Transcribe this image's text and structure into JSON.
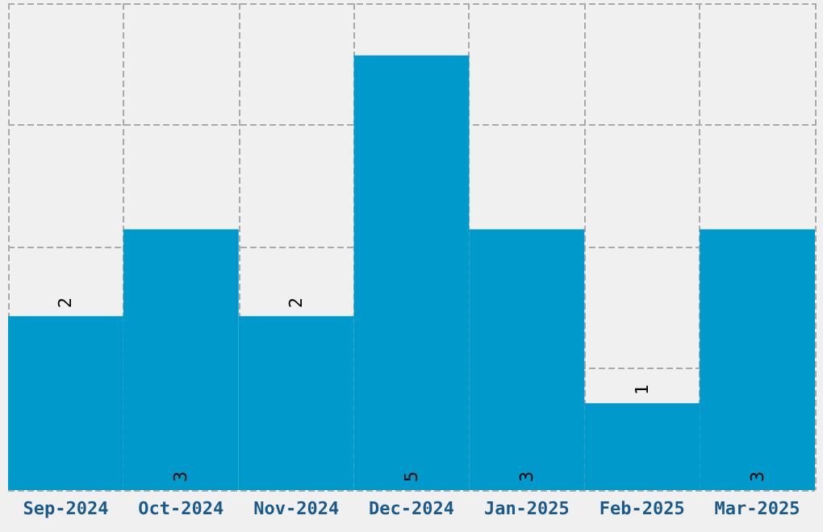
{
  "chart_data": {
    "type": "bar",
    "categories": [
      "Sep-2024",
      "Oct-2024",
      "Nov-2024",
      "Dec-2024",
      "Jan-2025",
      "Feb-2025",
      "Mar-2025"
    ],
    "values": [
      2,
      3,
      2,
      5,
      3,
      1,
      3
    ],
    "color": "#0099cc",
    "ylim": [
      0,
      5.6
    ],
    "yticks": [
      {
        "value": 0,
        "label": null
      },
      {
        "value": 1.4,
        "label": null
      },
      {
        "value": 2.8,
        "label": null
      },
      {
        "value": 4.2,
        "label": null
      },
      {
        "value": 5.6,
        "label": null
      }
    ],
    "grid": true,
    "data_labels": true,
    "tick_labels": "x"
  }
}
